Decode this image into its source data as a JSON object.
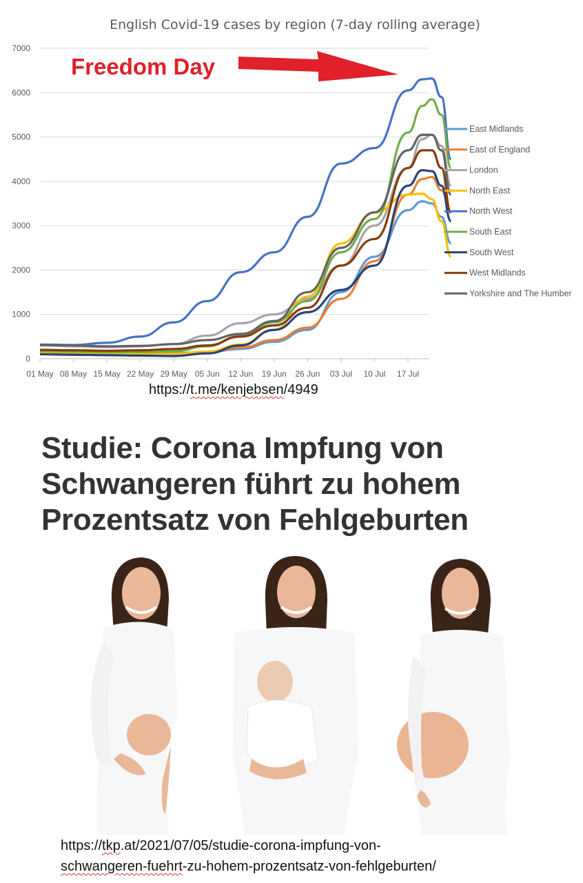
{
  "chart_data": {
    "type": "line",
    "title": "English Covid-19 cases by region (7-day rolling average)",
    "annotation": "Freedom Day",
    "x_ticks": [
      "01 May",
      "08 May",
      "15 May",
      "22 May",
      "29 May",
      "05 Jun",
      "12 Jun",
      "19 Jun",
      "26 Jun",
      "03 Jul",
      "10 Jul",
      "17 Jul"
    ],
    "y_ticks": [
      "0",
      "1000",
      "2000",
      "3000",
      "4000",
      "5000",
      "6000",
      "7000"
    ],
    "ylim": [
      0,
      7000
    ],
    "x_days": [
      0,
      7,
      14,
      21,
      28,
      35,
      42,
      49,
      56,
      63,
      70,
      77,
      80,
      82,
      84,
      86
    ],
    "legend_position": "right",
    "grid": true,
    "series": [
      {
        "name": "East Midlands",
        "color": "#5b9bd5",
        "values": [
          190,
          170,
          150,
          140,
          130,
          150,
          220,
          380,
          650,
          1500,
          2300,
          3350,
          3550,
          3500,
          3200,
          2600
        ]
      },
      {
        "name": "East of England",
        "color": "#ed7d31",
        "values": [
          150,
          140,
          120,
          110,
          110,
          140,
          250,
          420,
          700,
          1350,
          2200,
          3700,
          4050,
          4100,
          3800,
          3300
        ]
      },
      {
        "name": "London",
        "color": "#a5a5a5",
        "values": [
          300,
          280,
          260,
          280,
          330,
          520,
          800,
          1000,
          1350,
          2100,
          3000,
          4300,
          4950,
          5050,
          4800,
          3900
        ]
      },
      {
        "name": "North East",
        "color": "#ffc000",
        "values": [
          120,
          110,
          100,
          100,
          110,
          160,
          320,
          650,
          1400,
          2600,
          3300,
          3700,
          3720,
          3600,
          3100,
          2300
        ]
      },
      {
        "name": "North West",
        "color": "#4472c4",
        "values": [
          320,
          310,
          360,
          500,
          820,
          1300,
          1950,
          2400,
          3200,
          4400,
          4750,
          6050,
          6300,
          6320,
          5900,
          4500
        ]
      },
      {
        "name": "South East",
        "color": "#70ad47",
        "values": [
          170,
          160,
          150,
          150,
          170,
          280,
          520,
          820,
          1300,
          2400,
          3150,
          5100,
          5700,
          5850,
          5500,
          4300
        ]
      },
      {
        "name": "South West",
        "color": "#264478",
        "values": [
          100,
          90,
          80,
          70,
          60,
          120,
          300,
          650,
          1050,
          1550,
          2100,
          3900,
          4250,
          4230,
          3900,
          3100
        ]
      },
      {
        "name": "West Midlands",
        "color": "#843c0c",
        "values": [
          200,
          190,
          180,
          190,
          220,
          300,
          500,
          750,
          1150,
          2100,
          2700,
          4300,
          4700,
          4700,
          4300,
          3300
        ]
      },
      {
        "name": "Yorkshire and The Humber",
        "color": "#636363",
        "values": [
          310,
          300,
          280,
          290,
          330,
          420,
          560,
          850,
          1500,
          2500,
          3300,
          4700,
          5050,
          5050,
          4700,
          3700
        ]
      }
    ]
  },
  "links": {
    "telegram": {
      "prefix": "https://",
      "marked": "t.me/kenjebsen",
      "suffix": "/4949"
    },
    "article_line1": {
      "prefix": "https://",
      "marked": "tkp",
      "suffix": ".at/2021/07/05/studie-corona-impfung-von-"
    },
    "article_line2": {
      "marked": "schwangeren-fuehrt",
      "suffix": "-zu-hohem-prozentsatz-von-fehlgeburten/"
    }
  },
  "headline": "Studie: Corona Impfung von Schwangeren führt zu hohem Prozentsatz von Fehlgeburten",
  "colors": {
    "annotation": "#e0202a",
    "headline": "#333333",
    "axis_text": "#595959"
  }
}
